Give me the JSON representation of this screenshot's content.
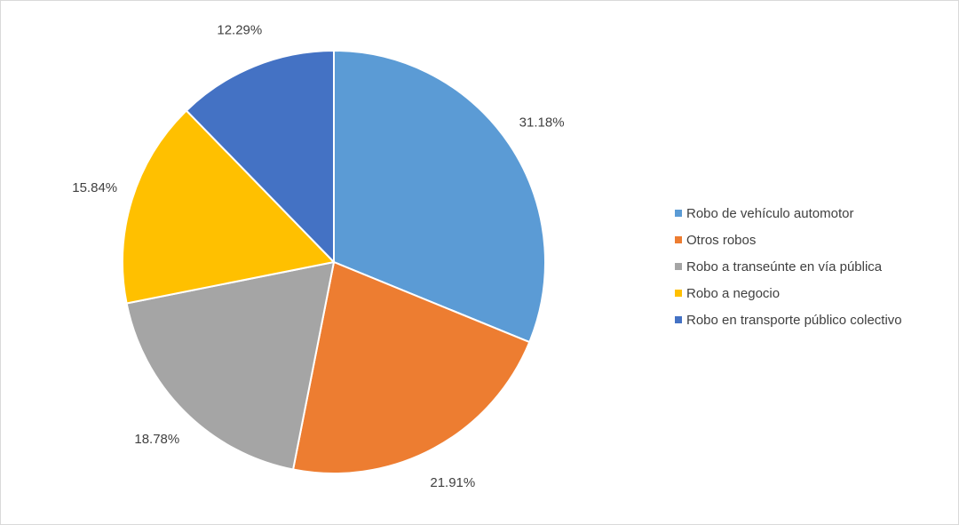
{
  "chart_data": {
    "type": "pie",
    "title": "",
    "categories": [
      "Robo de vehículo automotor",
      "Otros robos",
      "Robo a transeúnte en vía pública",
      "Robo a negocio",
      "Robo en transporte público colectivo"
    ],
    "values": [
      31.18,
      21.91,
      18.78,
      15.84,
      12.29
    ],
    "labels": [
      "31.18%",
      "21.91%",
      "18.78%",
      "15.84%",
      "12.29%"
    ],
    "colors": [
      "#5B9BD5",
      "#ED7D31",
      "#A5A5A5",
      "#FFC000",
      "#4472C4"
    ],
    "start_angle": "12 o'clock",
    "direction": "clockwise",
    "legend_position": "right",
    "data_labels": "outside"
  }
}
